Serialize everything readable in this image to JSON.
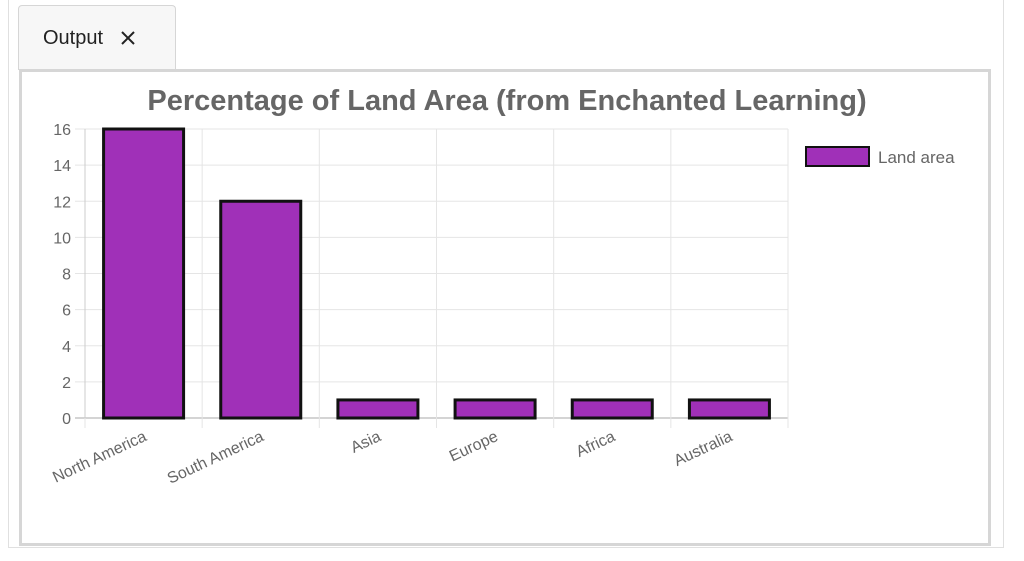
{
  "tab": {
    "label": "Output",
    "close_icon": "close-icon"
  },
  "colors": {
    "bar_fill": "#a030b8",
    "bar_border": "#111111",
    "grid": "#e5e5e5",
    "text": "#666666"
  },
  "chart_data": {
    "type": "bar",
    "title": "Percentage of Land Area (from Enchanted Learning)",
    "categories": [
      "North America",
      "South America",
      "Asia",
      "Europe",
      "Africa",
      "Australia"
    ],
    "series": [
      {
        "name": "Land area",
        "values": [
          16,
          12,
          1,
          1,
          1,
          1
        ]
      }
    ],
    "ylim": [
      0,
      16
    ],
    "yticks": [
      0,
      2,
      4,
      6,
      8,
      10,
      12,
      14,
      16
    ],
    "xlabel": "",
    "ylabel": "",
    "grid": true,
    "legend": "top-right"
  }
}
